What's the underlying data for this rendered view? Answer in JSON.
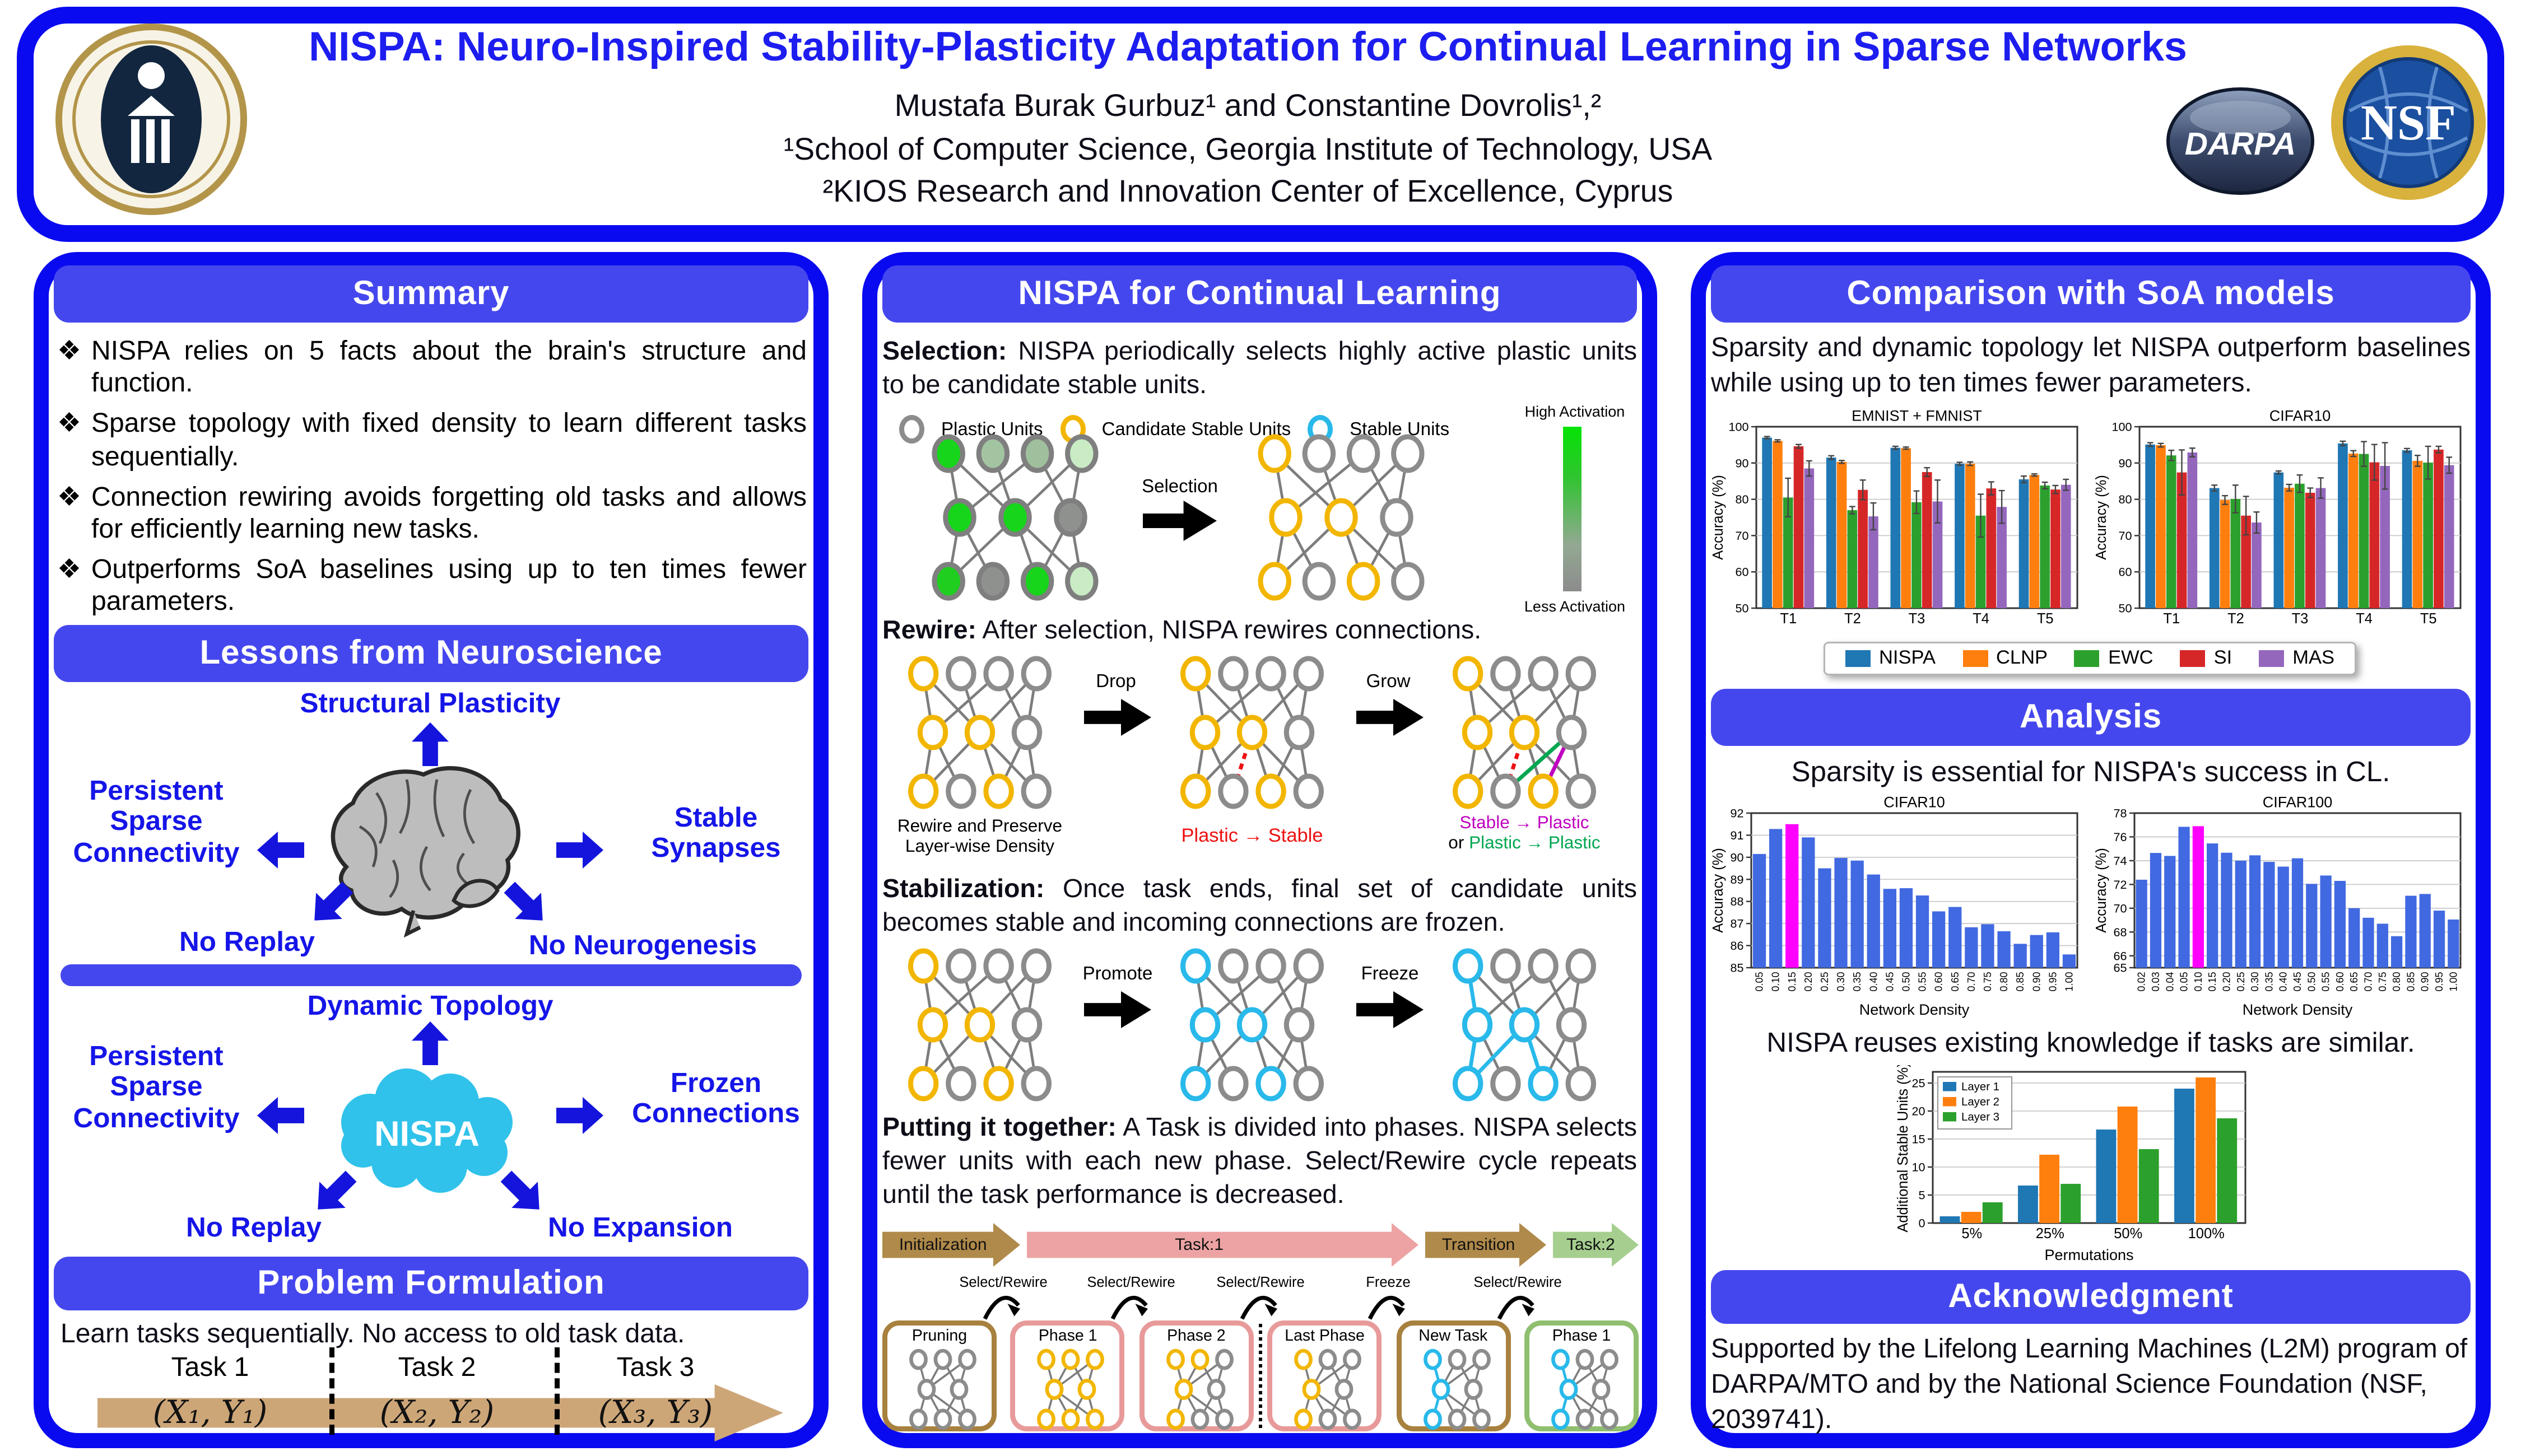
{
  "header": {
    "title": "NISPA: Neuro-Inspired Stability-Plasticity Adaptation for Continual Learning in Sparse Networks",
    "authors": "Mustafa Burak Gurbuz¹ and Constantine Dovrolis¹,²",
    "affiliation1": "¹School of Computer Science, Georgia Institute of Technology, USA",
    "affiliation2": "²KIOS Research and Innovation Center of Excellence, Cyprus",
    "logos": {
      "darpa": "DARPA",
      "nsf": "NSF"
    }
  },
  "colors": {
    "frame_blue": "#0a0af0",
    "bar_blue": "#4547ee",
    "title_blue": "#1d1df0",
    "plastic_gray": "#8c8c8c",
    "candidate_yellow": "#f2b600",
    "stable_cyan": "#29b9ea",
    "highlight_magenta": "#ff00ff",
    "density_bar_blue": "#4169e1"
  },
  "summary": {
    "heading": "Summary",
    "bullets": [
      "NISPA relies on 5 facts about the brain's structure and function.",
      "Sparse topology with fixed density to learn different tasks sequentially.",
      "Connection rewiring avoids forgetting old tasks and allows for efficiently learning new tasks.",
      "Outperforms SoA baselines using up to ten times fewer parameters."
    ]
  },
  "neuroscience": {
    "heading": "Lessons from Neuroscience",
    "brain": {
      "top": "Structural Plasticity",
      "left": "Persistent Sparse Connectivity",
      "right": "Stable Synapses",
      "bottom_left": "No Replay",
      "bottom_right": "No Neurogenesis"
    },
    "nispa": {
      "center": "NISPA",
      "top": "Dynamic Topology",
      "left": "Persistent Sparse Connectivity",
      "right": "Frozen Connections",
      "bottom_left": "No Replay",
      "bottom_right": "No Expansion"
    }
  },
  "problem": {
    "heading": "Problem Formulation",
    "text": "Learn tasks sequentially. No access to old task data.",
    "task_labels": [
      "Task 1",
      "Task 2",
      "Task 3"
    ],
    "task_data": [
      "(X₁, Y₁)",
      "(X₂, Y₂)",
      "(X₃, Y₃)"
    ]
  },
  "method": {
    "heading": "NISPA for Continual Learning",
    "selection_bold": "Selection:",
    "selection_text": " NISPA periodically selects highly active plastic units to be candidate stable units.",
    "legend": [
      "Plastic Units",
      "Candidate Stable Units",
      "Stable Units"
    ],
    "activation_high": "High Activation",
    "activation_low": "Less Activation",
    "selection_arrow": "Selection",
    "rewire_bold": "Rewire:",
    "rewire_text": " After selection, NISPA rewires connections.",
    "drop": "Drop",
    "grow": "Grow",
    "caption1": "Rewire and Preserve Layer-wise Density",
    "caption2": "Plastic → Stable",
    "caption3a": "Stable → Plastic",
    "caption3or": "or ",
    "caption3b": "Plastic → Plastic",
    "stabilization_bold": "Stabilization:",
    "stabilization_text": " Once task ends, final set of candidate units becomes stable and incoming connections are frozen.",
    "promote": "Promote",
    "freeze": "Freeze",
    "together_bold": "Putting it together:",
    "together_text": " A Task is divided into phases. NISPA selects fewer units with each new phase. Select/Rewire cycle repeats until the task performance is decreased.",
    "timeline": {
      "arrows": [
        {
          "label": "Initialization",
          "color": "#b08a4a"
        },
        {
          "label": "Task:1",
          "color": "#eda3a3"
        },
        {
          "label": "Transition",
          "color": "#b08a4a"
        },
        {
          "label": "Task:2",
          "color": "#a6cf8f"
        }
      ],
      "hops": [
        "Select/Rewire",
        "Select/Rewire",
        "Select/Rewire",
        "Freeze",
        "Select/Rewire"
      ],
      "phases": [
        {
          "label": "Pruning",
          "color": "#a8813f"
        },
        {
          "label": "Phase 1",
          "color": "#e89a9a"
        },
        {
          "label": "Phase 2",
          "color": "#e89a9a"
        },
        {
          "label": "Last Phase",
          "color": "#e89a9a"
        },
        {
          "label": "New Task",
          "color": "#a8813f"
        },
        {
          "label": "Phase 1",
          "color": "#8fbf6f"
        }
      ]
    }
  },
  "comparison": {
    "heading": "Comparison with SoA models",
    "text": "Sparsity and dynamic topology let NISPA outperform baselines while using up to ten times fewer parameters."
  },
  "analysis": {
    "heading": "Analysis",
    "sparsity_text": "Sparsity is essential for NISPA's success in CL.",
    "reuse_text": "NISPA reuses existing knowledge if tasks are similar."
  },
  "acknowledgment": {
    "heading": "Acknowledgment",
    "text": "Supported by the Lifelong Learning Machines (L2M) program of DARPA/MTO and by the National Science Foundation (NSF, 2039741)."
  },
  "chart_data": [
    {
      "type": "bar",
      "title": "EMNIST + FMNIST",
      "ylabel": "Accuracy (%)",
      "categories": [
        "T1",
        "T2",
        "T3",
        "T4",
        "T5"
      ],
      "ylim": [
        50,
        100
      ],
      "yticks": [
        50,
        60,
        70,
        80,
        90,
        100
      ],
      "grid": true,
      "legend_position": "shared-below",
      "series": [
        {
          "name": "NISPA",
          "color": "#1f77b4",
          "values": [
            97.0,
            91.5,
            94.2,
            89.8,
            85.5
          ],
          "err": [
            0.3,
            0.5,
            0.4,
            0.4,
            0.9
          ]
        },
        {
          "name": "CLNP",
          "color": "#ff7f0e",
          "values": [
            96.1,
            90.3,
            94.1,
            89.8,
            86.7
          ],
          "err": [
            0.3,
            0.4,
            0.3,
            0.5,
            0.3
          ]
        },
        {
          "name": "EWC",
          "color": "#2ca02c",
          "values": [
            80.5,
            77.0,
            79.2,
            75.5,
            83.8
          ],
          "err": [
            5.3,
            1.0,
            3.1,
            5.9,
            0.9
          ]
        },
        {
          "name": "SI",
          "color": "#d62728",
          "values": [
            94.6,
            82.6,
            87.5,
            83.0,
            82.7
          ],
          "err": [
            0.5,
            2.7,
            1.2,
            1.8,
            1.1
          ]
        },
        {
          "name": "MAS",
          "color": "#9467bd",
          "values": [
            88.5,
            75.3,
            79.4,
            77.9,
            84.0
          ],
          "err": [
            2.1,
            3.7,
            5.9,
            4.5,
            1.5
          ]
        }
      ]
    },
    {
      "type": "bar",
      "title": "CIFAR10",
      "ylabel": "Accuracy (%)",
      "categories": [
        "T1",
        "T2",
        "T3",
        "T4",
        "T5"
      ],
      "ylim": [
        50,
        100
      ],
      "yticks": [
        50,
        60,
        70,
        80,
        90,
        100
      ],
      "grid": true,
      "legend_position": "shared-below",
      "series": [
        {
          "name": "NISPA",
          "color": "#1f77b4",
          "values": [
            95.1,
            83.1,
            87.4,
            95.4,
            93.5
          ],
          "err": [
            0.5,
            0.8,
            0.4,
            0.6,
            0.5
          ]
        },
        {
          "name": "CLNP",
          "color": "#ff7f0e",
          "values": [
            94.9,
            79.8,
            83.2,
            92.6,
            90.6
          ],
          "err": [
            0.5,
            1.2,
            0.9,
            0.8,
            1.5
          ]
        },
        {
          "name": "EWC",
          "color": "#2ca02c",
          "values": [
            92.1,
            80.1,
            84.3,
            92.5,
            90.1
          ],
          "err": [
            1.4,
            3.8,
            2.4,
            3.4,
            4.5
          ]
        },
        {
          "name": "SI",
          "color": "#d62728",
          "values": [
            87.4,
            75.5,
            81.8,
            90.2,
            93.7
          ],
          "err": [
            6.2,
            5.3,
            1.3,
            4.9,
            0.9
          ]
        },
        {
          "name": "MAS",
          "color": "#9467bd",
          "values": [
            92.9,
            73.6,
            83.1,
            89.2,
            89.4
          ],
          "err": [
            1.2,
            2.9,
            2.8,
            6.4,
            2.2
          ]
        }
      ]
    },
    {
      "type": "bar",
      "title": "CIFAR10",
      "ylabel": "Accuracy (%)",
      "xlabel": "Network Density",
      "categories": [
        "0.05",
        "0.10",
        "0.15",
        "0.20",
        "0.25",
        "0.30",
        "0.35",
        "0.40",
        "0.45",
        "0.50",
        "0.55",
        "0.60",
        "0.65",
        "0.70",
        "0.75",
        "0.80",
        "0.85",
        "0.90",
        "0.95",
        "1.00"
      ],
      "values": [
        90.15,
        91.28,
        91.5,
        90.9,
        89.5,
        89.97,
        89.85,
        89.22,
        88.57,
        88.6,
        88.27,
        87.55,
        87.75,
        86.83,
        86.97,
        86.65,
        86.08,
        86.48,
        86.6,
        85.6
      ],
      "ylim": [
        85,
        92
      ],
      "yticks": [
        85,
        86,
        87,
        88,
        89,
        90,
        91,
        92
      ],
      "grid": true,
      "rotate_xticks": true,
      "bar_color": "#4169e1",
      "highlight_index": 2,
      "highlight_color": "#ff00ff"
    },
    {
      "type": "bar",
      "title": "CIFAR100",
      "ylabel": "Accuracy (%)",
      "xlabel": "Network Density",
      "categories": [
        "0.02",
        "0.03",
        "0.04",
        "0.05",
        "0.10",
        "0.15",
        "0.20",
        "0.25",
        "0.30",
        "0.35",
        "0.40",
        "0.45",
        "0.50",
        "0.55",
        "0.60",
        "0.65",
        "0.70",
        "0.75",
        "0.80",
        "0.85",
        "0.90",
        "0.95",
        "1.00"
      ],
      "values": [
        72.4,
        74.65,
        74.4,
        76.85,
        76.9,
        75.45,
        74.67,
        74.0,
        74.45,
        73.9,
        73.5,
        74.2,
        72.05,
        72.75,
        72.3,
        70.0,
        69.2,
        68.7,
        67.65,
        71.05,
        71.2,
        69.8,
        69.05
      ],
      "ylim": [
        65,
        78
      ],
      "yticks": [
        65,
        66,
        68,
        70,
        72,
        74,
        76,
        78
      ],
      "grid": true,
      "rotate_xticks": true,
      "bar_color": "#4169e1",
      "highlight_index": 4,
      "highlight_color": "#ff00ff"
    },
    {
      "type": "bar",
      "ylabel": "Additional Stable Units (%)",
      "xlabel": "Permutations",
      "categories": [
        "5%",
        "25%",
        "50%",
        "100%"
      ],
      "ylim": [
        0,
        27
      ],
      "yticks": [
        0,
        5,
        10,
        15,
        20,
        25
      ],
      "grid": true,
      "legend_position": "inside-top-left",
      "series": [
        {
          "name": "Layer 1",
          "color": "#1f77b4",
          "values": [
            1.2,
            6.7,
            16.7,
            24.0
          ]
        },
        {
          "name": "Layer 2",
          "color": "#ff7f0e",
          "values": [
            2.0,
            12.2,
            20.8,
            26.0
          ]
        },
        {
          "name": "Layer 3",
          "color": "#2ca02c",
          "values": [
            3.7,
            7.0,
            13.2,
            18.7
          ]
        }
      ]
    }
  ],
  "diagrams": {
    "selection_left": {
      "r": 10,
      "layers": [
        [
          "#16d51a",
          "#a3c4a0",
          "#9fc09c",
          "#c9ecc5"
        ],
        [
          "#16d51a",
          "#16d51a",
          "#8f918f"
        ],
        [
          "#20ce20",
          "#8f918f",
          "#16d51a",
          "#c9ecc5"
        ]
      ]
    },
    "selection_right": {
      "r": 10,
      "layers": [
        [
          "Y",
          "G",
          "G",
          "G"
        ],
        [
          "Y",
          "Y",
          "G"
        ],
        [
          "Y",
          "G",
          "Y",
          "G"
        ]
      ]
    },
    "rewire": [
      {
        "layers": [
          [
            "Y",
            "G",
            "G",
            "G"
          ],
          [
            "Y",
            "Y",
            "G"
          ],
          [
            "Y",
            "G",
            "Y",
            "G"
          ]
        ]
      },
      {
        "layers": [
          [
            "Y",
            "G",
            "G",
            "G"
          ],
          [
            "Y",
            "Y",
            "G"
          ],
          [
            "Y",
            "G",
            "Y",
            "G"
          ]
        ],
        "extra": [
          {
            "a": [
              1,
              1
            ],
            "b": [
              2,
              1
            ],
            "color": "#ee1111",
            "dash": true
          }
        ]
      },
      {
        "layers": [
          [
            "Y",
            "G",
            "G",
            "G"
          ],
          [
            "Y",
            "Y",
            "G"
          ],
          [
            "Y",
            "G",
            "Y",
            "G"
          ]
        ],
        "extra": [
          {
            "a": [
              1,
              1
            ],
            "b": [
              2,
              1
            ],
            "color": "#ee1111",
            "dash": true
          },
          {
            "a": [
              1,
              2
            ],
            "b": [
              2,
              1
            ],
            "color": "#00a651"
          },
          {
            "a": [
              1,
              2
            ],
            "b": [
              2,
              2
            ],
            "color": "#c000c0"
          }
        ]
      }
    ],
    "stab": [
      {
        "layers": [
          [
            "Y",
            "G",
            "G",
            "G"
          ],
          [
            "Y",
            "Y",
            "G"
          ],
          [
            "Y",
            "G",
            "Y",
            "G"
          ]
        ]
      },
      {
        "layers": [
          [
            "C",
            "G",
            "G",
            "G"
          ],
          [
            "C",
            "C",
            "G"
          ],
          [
            "C",
            "G",
            "C",
            "G"
          ]
        ]
      },
      {
        "layers": [
          [
            "C",
            "G",
            "G",
            "G"
          ],
          [
            "C",
            "C",
            "G"
          ],
          [
            "C",
            "G",
            "C",
            "G"
          ]
        ],
        "extra": [
          {
            "a": [
              0,
              0
            ],
            "b": [
              1,
              0
            ],
            "color": "#29b9ea"
          },
          {
            "a": [
              1,
              0
            ],
            "b": [
              2,
              0
            ],
            "color": "#29b9ea"
          },
          {
            "a": [
              1,
              1
            ],
            "b": [
              2,
              0
            ],
            "color": "#29b9ea"
          },
          {
            "a": [
              1,
              1
            ],
            "b": [
              2,
              2
            ],
            "color": "#29b9ea"
          }
        ]
      }
    ],
    "phases": [
      {
        "layers": [
          [
            "G",
            "G",
            "G"
          ],
          [
            "G",
            "G"
          ],
          [
            "G",
            "G",
            "G"
          ]
        ]
      },
      {
        "layers": [
          [
            "Y",
            "Y",
            "Y"
          ],
          [
            "Y",
            "Y"
          ],
          [
            "Y",
            "Y",
            "Y"
          ]
        ]
      },
      {
        "layers": [
          [
            "Y",
            "Y",
            "G"
          ],
          [
            "Y",
            "G"
          ],
          [
            "Y",
            "G",
            "G"
          ]
        ]
      },
      {
        "layers": [
          [
            "Y",
            "G",
            "G"
          ],
          [
            "Y",
            "G"
          ],
          [
            "Y",
            "G",
            "G"
          ]
        ]
      },
      {
        "layers": [
          [
            "C",
            "G",
            "G"
          ],
          [
            "C",
            "G"
          ],
          [
            "C",
            "G",
            "G"
          ]
        ],
        "extra": [
          {
            "a": [
              0,
              0
            ],
            "b": [
              1,
              0
            ],
            "color": "#29b9ea"
          },
          {
            "a": [
              1,
              0
            ],
            "b": [
              2,
              0
            ],
            "color": "#29b9ea"
          }
        ]
      },
      {
        "layers": [
          [
            "C",
            "G",
            "G"
          ],
          [
            "C",
            "G"
          ],
          [
            "C",
            "G",
            "G"
          ]
        ],
        "extra": [
          {
            "a": [
              0,
              0
            ],
            "b": [
              1,
              0
            ],
            "color": "#29b9ea"
          },
          {
            "a": [
              1,
              0
            ],
            "b": [
              2,
              0
            ],
            "color": "#29b9ea"
          }
        ]
      }
    ]
  }
}
